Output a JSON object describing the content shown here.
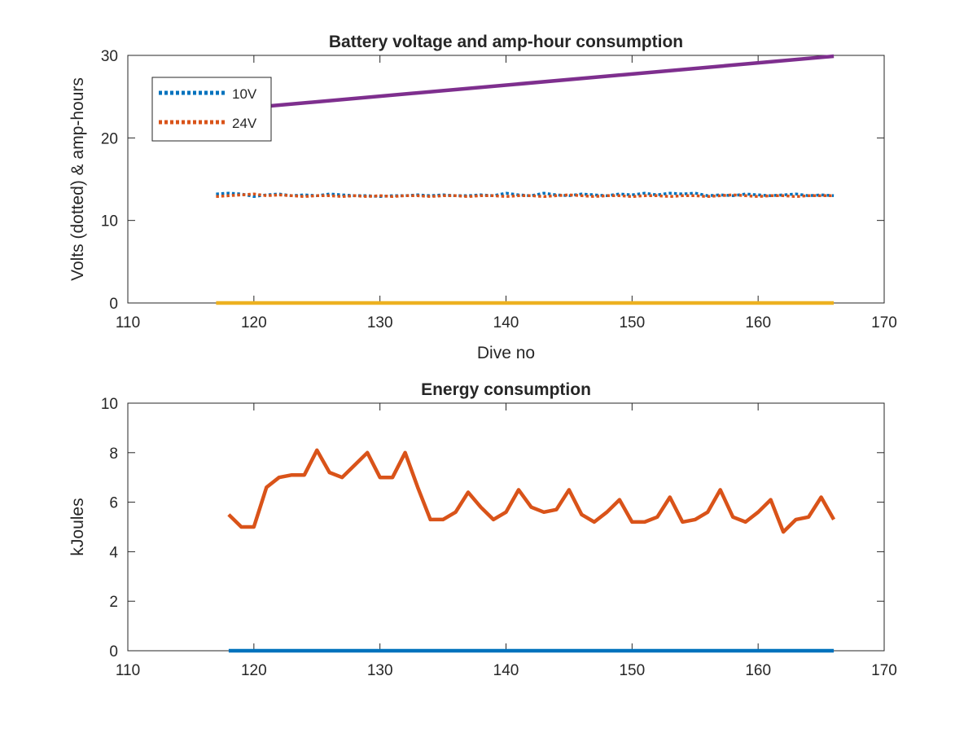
{
  "chart_data": [
    {
      "type": "line",
      "title": "Battery voltage and amp-hour consumption",
      "xlabel": "Dive no",
      "ylabel": "Volts (dotted) & amp-hours",
      "xlim": [
        110,
        170
      ],
      "ylim": [
        0,
        30
      ],
      "xticks": [
        110,
        120,
        130,
        140,
        150,
        160,
        170
      ],
      "yticks": [
        0,
        10,
        20,
        30
      ],
      "legend": "top-left",
      "grid": false,
      "series": [
        {
          "name": "10V",
          "style": "dotted",
          "color": "#0072BD",
          "x": [
            117,
            118,
            119,
            120,
            121,
            122,
            123,
            124,
            125,
            126,
            127,
            128,
            129,
            130,
            131,
            132,
            133,
            134,
            135,
            136,
            137,
            138,
            139,
            140,
            141,
            142,
            143,
            144,
            145,
            146,
            147,
            148,
            149,
            150,
            151,
            152,
            153,
            154,
            155,
            156,
            157,
            158,
            159,
            160,
            161,
            162,
            163,
            164,
            165,
            166
          ],
          "y": [
            13.2,
            13.3,
            13.2,
            12.9,
            13.1,
            13.2,
            13.0,
            13.1,
            13.0,
            13.2,
            13.1,
            13.0,
            13.0,
            12.9,
            13.0,
            13.0,
            13.1,
            13.0,
            13.1,
            13.0,
            13.0,
            13.1,
            13.0,
            13.3,
            13.1,
            13.0,
            13.3,
            13.1,
            13.0,
            13.2,
            13.1,
            13.0,
            13.2,
            13.1,
            13.3,
            13.1,
            13.3,
            13.2,
            13.3,
            13.0,
            13.1,
            13.0,
            13.2,
            13.1,
            13.0,
            13.1,
            13.2,
            13.0,
            13.1,
            13.0
          ]
        },
        {
          "name": "24V",
          "style": "dotted",
          "color": "#D95319",
          "x": [
            117,
            118,
            119,
            120,
            121,
            122,
            123,
            124,
            125,
            126,
            127,
            128,
            129,
            130,
            131,
            132,
            133,
            134,
            135,
            136,
            137,
            138,
            139,
            140,
            141,
            142,
            143,
            144,
            145,
            146,
            147,
            148,
            149,
            150,
            151,
            152,
            153,
            154,
            155,
            156,
            157,
            158,
            159,
            160,
            161,
            162,
            163,
            164,
            165,
            166
          ],
          "y": [
            12.9,
            13.0,
            13.1,
            13.2,
            13.0,
            13.1,
            13.0,
            12.9,
            13.0,
            13.0,
            12.9,
            13.0,
            12.9,
            13.0,
            12.9,
            13.0,
            13.0,
            12.9,
            13.0,
            13.0,
            12.9,
            13.0,
            13.0,
            12.9,
            13.0,
            13.0,
            12.9,
            13.0,
            13.1,
            13.0,
            12.9,
            13.0,
            13.0,
            12.9,
            13.0,
            13.0,
            12.9,
            13.0,
            13.0,
            12.9,
            13.0,
            13.1,
            13.0,
            12.9,
            13.0,
            13.0,
            12.9,
            13.0,
            13.0,
            13.0
          ]
        },
        {
          "style": "solid",
          "color": "#EDB120",
          "x": [
            117,
            166
          ],
          "y": [
            0,
            0
          ]
        },
        {
          "style": "solid",
          "color": "#7E2F8E",
          "x": [
            117,
            166
          ],
          "y": [
            23.3,
            29.9
          ]
        }
      ]
    },
    {
      "type": "line",
      "title": "Energy consumption",
      "xlabel": "",
      "ylabel": "kJoules",
      "xlim": [
        110,
        170
      ],
      "ylim": [
        0,
        10
      ],
      "xticks": [
        110,
        120,
        130,
        140,
        150,
        160,
        170
      ],
      "yticks": [
        0,
        2,
        4,
        6,
        8,
        10
      ],
      "grid": false,
      "series": [
        {
          "style": "solid",
          "color": "#0072BD",
          "x": [
            118,
            166
          ],
          "y": [
            0,
            0
          ]
        },
        {
          "style": "solid",
          "color": "#D95319",
          "x": [
            118,
            119,
            120,
            121,
            122,
            123,
            124,
            125,
            126,
            127,
            128,
            129,
            130,
            131,
            132,
            133,
            134,
            135,
            136,
            137,
            138,
            139,
            140,
            141,
            142,
            143,
            144,
            145,
            146,
            147,
            148,
            149,
            150,
            151,
            152,
            153,
            154,
            155,
            156,
            157,
            158,
            159,
            160,
            161,
            162,
            163,
            164,
            165,
            166
          ],
          "y": [
            5.5,
            5.0,
            5.0,
            6.6,
            7.0,
            7.1,
            7.1,
            8.1,
            7.2,
            7.0,
            7.5,
            8.0,
            7.0,
            7.0,
            8.0,
            6.6,
            5.3,
            5.3,
            5.6,
            6.4,
            5.8,
            5.3,
            5.6,
            6.5,
            5.8,
            5.6,
            5.7,
            6.5,
            5.5,
            5.2,
            5.6,
            6.1,
            5.2,
            5.2,
            5.4,
            6.2,
            5.2,
            5.3,
            5.6,
            6.5,
            5.4,
            5.2,
            5.6,
            6.1,
            4.8,
            5.3,
            5.4,
            6.2,
            5.3
          ]
        }
      ]
    }
  ]
}
